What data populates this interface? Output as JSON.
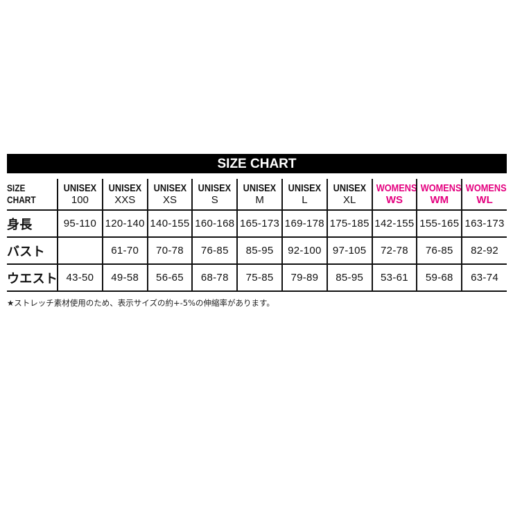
{
  "title": "SIZE CHART",
  "corner_label": [
    "SIZE",
    "CHART"
  ],
  "accent_color": "#e4007f",
  "columns": [
    {
      "line1": "UNISEX",
      "line2": "100",
      "womens": false
    },
    {
      "line1": "UNISEX",
      "line2": "XXS",
      "womens": false
    },
    {
      "line1": "UNISEX",
      "line2": "XS",
      "womens": false
    },
    {
      "line1": "UNISEX",
      "line2": "S",
      "womens": false
    },
    {
      "line1": "UNISEX",
      "line2": "M",
      "womens": false
    },
    {
      "line1": "UNISEX",
      "line2": "L",
      "womens": false
    },
    {
      "line1": "UNISEX",
      "line2": "XL",
      "womens": false
    },
    {
      "line1": "WOMENS",
      "line2": "WS",
      "womens": true
    },
    {
      "line1": "WOMENS",
      "line2": "WM",
      "womens": true
    },
    {
      "line1": "WOMENS",
      "line2": "WL",
      "womens": true
    }
  ],
  "rows": [
    {
      "label": "身長",
      "values": [
        "95-110",
        "120-140",
        "140-155",
        "160-168",
        "165-173",
        "169-178",
        "175-185",
        "142-155",
        "155-165",
        "163-173"
      ]
    },
    {
      "label": "バスト",
      "values": [
        "",
        "61-70",
        "70-78",
        "76-85",
        "85-95",
        "92-100",
        "97-105",
        "72-78",
        "76-85",
        "82-92"
      ]
    },
    {
      "label": "ウエスト",
      "values": [
        "43-50",
        "49-58",
        "56-65",
        "68-78",
        "75-85",
        "79-89",
        "85-95",
        "53-61",
        "59-68",
        "63-74"
      ]
    }
  ],
  "footnote": "★ストレッチ素材使用のため、表示サイズの約+-5%の伸縮率があります。"
}
